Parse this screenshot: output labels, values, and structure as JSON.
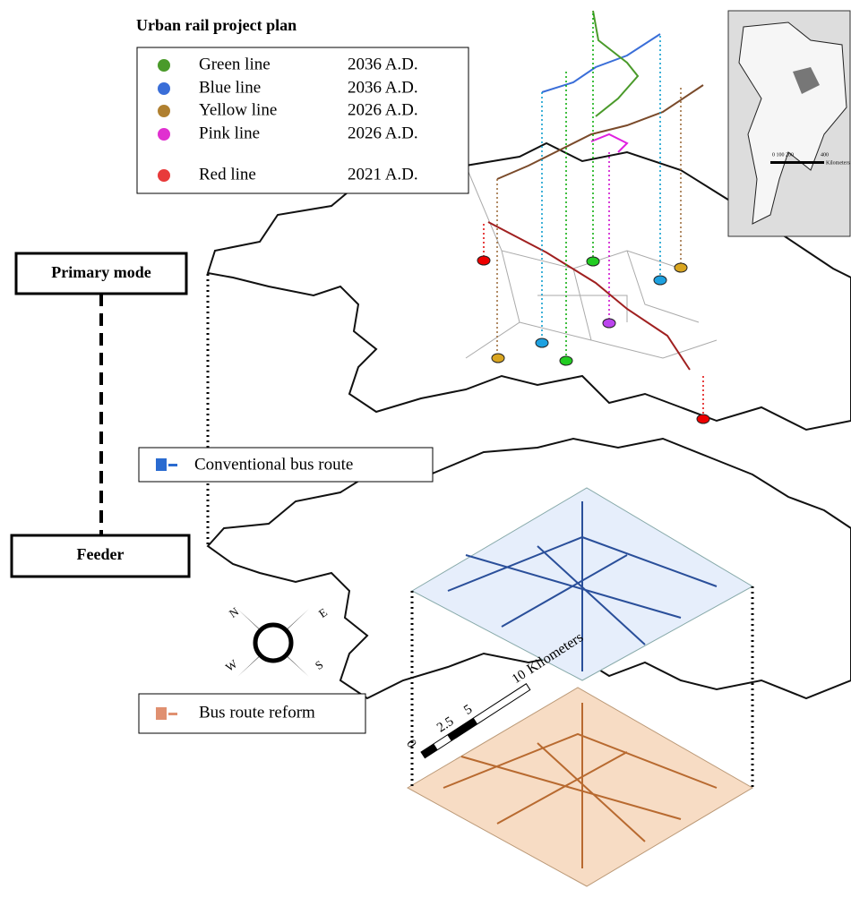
{
  "title": "Urban rail project plan",
  "legend": [
    {
      "name": "Green line",
      "year": "2036 A.D."
    },
    {
      "name": "Blue line",
      "year": "2036 A.D."
    },
    {
      "name": "Yellow line",
      "year": "2026 A.D."
    },
    {
      "name": "Pink line",
      "year": "2026 A.D."
    },
    {
      "name": "Red line",
      "year": "2021 A.D."
    }
  ],
  "modes": {
    "primary": "Primary mode",
    "feeder": "Feeder"
  },
  "layers": {
    "conventional": "Conventional bus route",
    "reform": "Bus route reform"
  },
  "compass": {
    "n": "N",
    "e": "E",
    "s": "S",
    "w": "W"
  },
  "scale": {
    "ticks": [
      "0",
      "2.5",
      "5",
      "10"
    ],
    "unit": "Kilometers"
  },
  "inset": {
    "scale": "0  100  200",
    "max": "400",
    "unit": "Kilometers"
  }
}
